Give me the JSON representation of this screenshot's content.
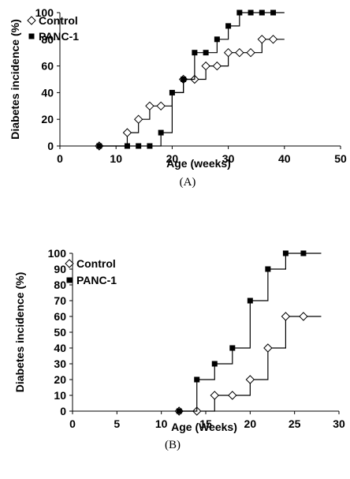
{
  "chart_data": [
    {
      "type": "line",
      "panel_label": "(A)",
      "xlabel": "Age (weeks)",
      "ylabel": "Diabetes incidence (%)",
      "xlim": [
        0,
        50
      ],
      "ylim": [
        0,
        100
      ],
      "xticks": [
        "0",
        "10",
        "20",
        "30",
        "40",
        "50"
      ],
      "yticks": [
        "0",
        "20",
        "40",
        "60",
        "80",
        "100"
      ],
      "legend": "top-left",
      "step": true,
      "series": [
        {
          "name": "Control",
          "marker": "open-diamond",
          "step_x": [
            7,
            12,
            14,
            16,
            20,
            22,
            26,
            28,
            30,
            32,
            36,
            40
          ],
          "step_y": [
            0,
            10,
            20,
            30,
            40,
            50,
            60,
            60,
            70,
            70,
            80,
            80
          ],
          "points": [
            [
              7,
              0
            ],
            [
              12,
              10
            ],
            [
              14,
              20
            ],
            [
              16,
              30
            ],
            [
              18,
              30
            ],
            [
              22,
              50
            ],
            [
              24,
              50
            ],
            [
              26,
              60
            ],
            [
              28,
              60
            ],
            [
              30,
              70
            ],
            [
              32,
              70
            ],
            [
              34,
              70
            ],
            [
              36,
              80
            ],
            [
              38,
              80
            ]
          ]
        },
        {
          "name": "PANC-1",
          "marker": "filled-square",
          "step_x": [
            7,
            18,
            20,
            22,
            24,
            26,
            28,
            30,
            32,
            40
          ],
          "step_y": [
            0,
            10,
            40,
            50,
            70,
            70,
            80,
            90,
            100,
            100
          ],
          "points": [
            [
              7,
              0
            ],
            [
              12,
              0
            ],
            [
              14,
              0
            ],
            [
              16,
              0
            ],
            [
              18,
              10
            ],
            [
              20,
              40
            ],
            [
              22,
              50
            ],
            [
              24,
              70
            ],
            [
              26,
              70
            ],
            [
              28,
              80
            ],
            [
              30,
              90
            ],
            [
              32,
              100
            ],
            [
              34,
              100
            ],
            [
              36,
              100
            ],
            [
              38,
              100
            ]
          ]
        }
      ]
    },
    {
      "type": "line",
      "panel_label": "(B)",
      "xlabel": "Age (Weeks)",
      "ylabel": "Diabetes incidence (%)",
      "xlim": [
        0,
        30
      ],
      "ylim": [
        0,
        100
      ],
      "xticks": [
        "0",
        "5",
        "10",
        "15",
        "20",
        "25",
        "30"
      ],
      "yticks": [
        "0",
        "10",
        "20",
        "30",
        "40",
        "50",
        "60",
        "70",
        "80",
        "90",
        "100"
      ],
      "legend": "top-left",
      "step": true,
      "series": [
        {
          "name": "Control",
          "marker": "open-diamond",
          "step_x": [
            12,
            16,
            20,
            22,
            24,
            28
          ],
          "step_y": [
            0,
            10,
            20,
            40,
            60,
            60
          ],
          "points": [
            [
              12,
              0
            ],
            [
              14,
              0
            ],
            [
              16,
              10
            ],
            [
              18,
              10
            ],
            [
              20,
              20
            ],
            [
              22,
              40
            ],
            [
              24,
              60
            ],
            [
              26,
              60
            ]
          ]
        },
        {
          "name": "PANC-1",
          "marker": "filled-square",
          "step_x": [
            12,
            14,
            16,
            18,
            20,
            22,
            24,
            28
          ],
          "step_y": [
            0,
            20,
            30,
            40,
            70,
            90,
            100,
            100
          ],
          "points": [
            [
              12,
              0
            ],
            [
              14,
              20
            ],
            [
              16,
              30
            ],
            [
              18,
              40
            ],
            [
              20,
              70
            ],
            [
              22,
              90
            ],
            [
              24,
              100
            ],
            [
              26,
              100
            ]
          ]
        }
      ]
    }
  ]
}
